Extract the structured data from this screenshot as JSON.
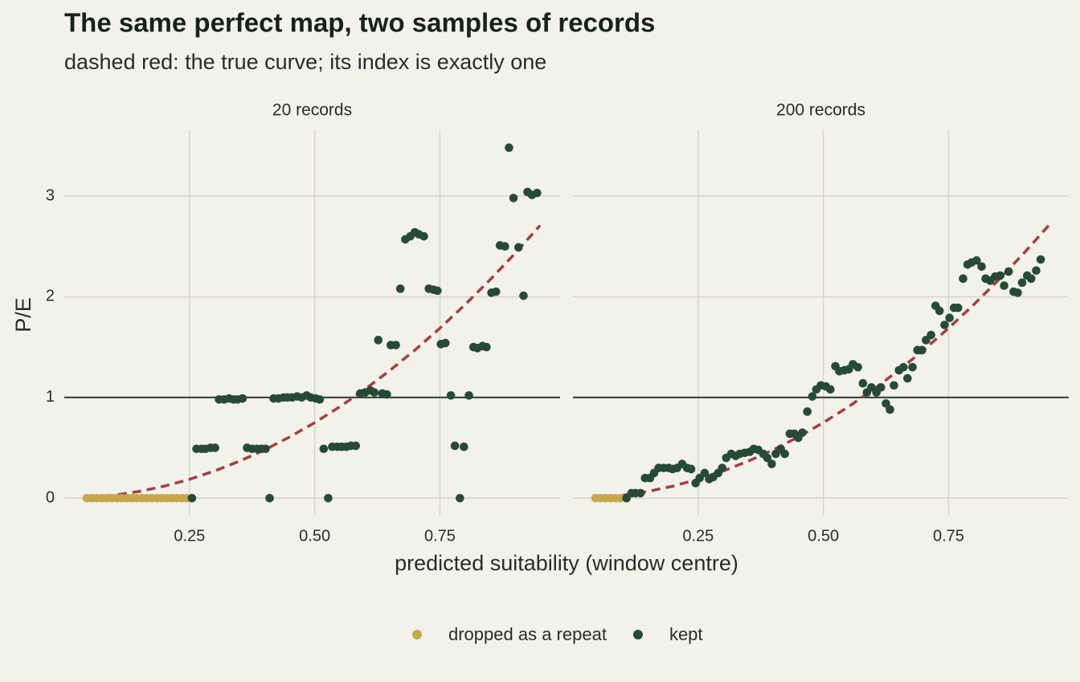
{
  "title": "The same perfect map, two samples of records",
  "subtitle": "dashed red: the true curve; its index is exactly one",
  "x_label": "predicted suitability (window centre)",
  "y_label": "P/E",
  "legend_position": "bottom",
  "chart_data": [
    {
      "type": "scatter",
      "panel_title": "20 records",
      "xlim": [
        0,
        0.99
      ],
      "ylim": [
        -0.174,
        3.654
      ],
      "xticks": [
        0.25,
        {
          "value": 0.5,
          "label": "0.50"
        },
        0.75
      ],
      "yticks": [
        0,
        1,
        2,
        3
      ],
      "grid": true,
      "hline": 1,
      "hline_color": "#2a3a30",
      "curve": {
        "color": "#a33f3f",
        "x": [
          0.05,
          0.1,
          0.15,
          0.2,
          0.25,
          0.3,
          0.35,
          0.4,
          0.45,
          0.5,
          0.55,
          0.6,
          0.65,
          0.7,
          0.75,
          0.8,
          0.85,
          0.9,
          0.95
        ],
        "values": [
          0.0075,
          0.03,
          0.0675,
          0.12,
          0.1875,
          0.27,
          0.3675,
          0.48,
          0.6075,
          0.75,
          0.9075,
          1.08,
          1.2675,
          1.47,
          1.6875,
          1.92,
          2.1675,
          2.43,
          2.7075
        ]
      },
      "series": [
        {
          "name": "dropped as a repeat",
          "color": "#c4a84a",
          "x": [
            0.045,
            0.055,
            0.065,
            0.075,
            0.085,
            0.095,
            0.105,
            0.115,
            0.125,
            0.135,
            0.145,
            0.155,
            0.165,
            0.175,
            0.185,
            0.195,
            0.205,
            0.215,
            0.225,
            0.235,
            0.245
          ],
          "values": [
            0,
            0,
            0,
            0,
            0,
            0,
            0,
            0,
            0,
            0,
            0,
            0,
            0,
            0,
            0,
            0,
            0,
            0,
            0,
            0,
            0
          ]
        },
        {
          "name": "kept",
          "color": "#264a36",
          "x": [
            0.255,
            0.264,
            0.274,
            0.282,
            0.292,
            0.301,
            0.309,
            0.319,
            0.329,
            0.338,
            0.346,
            0.356,
            0.365,
            0.375,
            0.385,
            0.394,
            0.402,
            0.41,
            0.418,
            0.428,
            0.438,
            0.446,
            0.455,
            0.465,
            0.474,
            0.484,
            0.492,
            0.502,
            0.51,
            0.518,
            0.527,
            0.535,
            0.545,
            0.554,
            0.563,
            0.572,
            0.582,
            0.591,
            0.601,
            0.611,
            0.619,
            0.627,
            0.635,
            0.644,
            0.652,
            0.662,
            0.671,
            0.681,
            0.691,
            0.7,
            0.708,
            0.718,
            0.728,
            0.737,
            0.745,
            0.752,
            0.761,
            0.772,
            0.78,
            0.79,
            0.798,
            0.808,
            0.817,
            0.825,
            0.835,
            0.843,
            0.853,
            0.862,
            0.87,
            0.88,
            0.888,
            0.897,
            0.907,
            0.917,
            0.925,
            0.934,
            0.944
          ],
          "values": [
            0,
            0.49,
            0.49,
            0.49,
            0.5,
            0.5,
            0.98,
            0.98,
            0.99,
            0.98,
            0.98,
            0.99,
            0.5,
            0.49,
            0.49,
            0.49,
            0.49,
            0,
            0.99,
            0.99,
            1.0,
            1.0,
            1.0,
            1.01,
            1.0,
            1.02,
            1.0,
            0.99,
            0.98,
            0.49,
            0,
            0.51,
            0.51,
            0.51,
            0.51,
            0.52,
            0.52,
            1.04,
            1.05,
            1.07,
            1.05,
            1.57,
            1.04,
            1.03,
            1.52,
            1.52,
            2.08,
            2.57,
            2.6,
            2.64,
            2.62,
            2.6,
            2.08,
            2.07,
            2.06,
            1.53,
            1.54,
            1.02,
            0.52,
            0,
            0.51,
            1.02,
            1.5,
            1.49,
            1.51,
            1.5,
            2.04,
            2.05,
            2.51,
            2.5,
            3.48,
            2.98,
            2.49,
            2.01,
            3.04,
            3.01,
            3.03
          ]
        }
      ]
    },
    {
      "type": "scatter",
      "panel_title": "200 records",
      "xlim": [
        0,
        0.99
      ],
      "ylim": [
        -0.174,
        3.654
      ],
      "xticks": [
        0.25,
        {
          "value": 0.5,
          "label": "0.50"
        },
        0.75
      ],
      "yticks": [
        0,
        1,
        2,
        3
      ],
      "grid": true,
      "hline": 1,
      "hline_color": "#2a3a30",
      "curve": {
        "color": "#a33f3f",
        "x": [
          0.1,
          0.15,
          0.2,
          0.25,
          0.3,
          0.35,
          0.4,
          0.45,
          0.5,
          0.55,
          0.6,
          0.65,
          0.7,
          0.75,
          0.8,
          0.85,
          0.9,
          0.95
        ],
        "values": [
          0.03,
          0.0675,
          0.12,
          0.1875,
          0.27,
          0.3675,
          0.48,
          0.6075,
          0.75,
          0.9075,
          1.08,
          1.2675,
          1.47,
          1.6875,
          1.92,
          2.1675,
          2.43,
          2.7075
        ]
      },
      "series": [
        {
          "color": "#c4a84a",
          "x": [
            0.045,
            0.055,
            0.065,
            0.075,
            0.085,
            0.095
          ],
          "values": [
            0,
            0,
            0,
            0,
            0,
            0
          ]
        },
        {
          "color": "#264a36",
          "x": [
            0.107,
            0.117,
            0.125,
            0.135,
            0.144,
            0.154,
            0.162,
            0.171,
            0.181,
            0.191,
            0.199,
            0.208,
            0.218,
            0.228,
            0.236,
            0.245,
            0.253,
            0.263,
            0.272,
            0.28,
            0.29,
            0.298,
            0.306,
            0.316,
            0.325,
            0.333,
            0.343,
            0.353,
            0.361,
            0.37,
            0.38,
            0.388,
            0.397,
            0.405,
            0.415,
            0.423,
            0.433,
            0.442,
            0.45,
            0.458,
            0.468,
            0.478,
            0.486,
            0.495,
            0.505,
            0.514,
            0.524,
            0.532,
            0.542,
            0.551,
            0.559,
            0.569,
            0.579,
            0.587,
            0.596,
            0.606,
            0.615,
            0.625,
            0.633,
            0.641,
            0.651,
            0.66,
            0.668,
            0.678,
            0.688,
            0.697,
            0.705,
            0.715,
            0.724,
            0.732,
            0.742,
            0.752,
            0.761,
            0.769,
            0.779,
            0.788,
            0.796,
            0.806,
            0.816,
            0.824,
            0.833,
            0.843,
            0.853,
            0.861,
            0.87,
            0.88,
            0.888,
            0.897,
            0.907,
            0.915,
            0.925,
            0.934
          ],
          "values": [
            0,
            0.05,
            0.05,
            0.05,
            0.2,
            0.2,
            0.25,
            0.3,
            0.3,
            0.3,
            0.29,
            0.3,
            0.34,
            0.3,
            0.29,
            0.15,
            0.2,
            0.25,
            0.19,
            0.21,
            0.25,
            0.3,
            0.4,
            0.44,
            0.42,
            0.44,
            0.45,
            0.46,
            0.49,
            0.48,
            0.44,
            0.4,
            0.34,
            0.44,
            0.49,
            0.44,
            0.64,
            0.64,
            0.6,
            0.65,
            0.86,
            1.01,
            1.08,
            1.12,
            1.11,
            1.08,
            1.31,
            1.26,
            1.27,
            1.28,
            1.33,
            1.3,
            1.14,
            1.05,
            1.1,
            1.05,
            1.1,
            0.94,
            0.88,
            1.12,
            1.27,
            1.3,
            1.19,
            1.3,
            1.47,
            1.47,
            1.57,
            1.62,
            1.91,
            1.86,
            1.72,
            1.79,
            1.89,
            1.89,
            2.18,
            2.32,
            2.34,
            2.36,
            2.3,
            2.18,
            2.16,
            2.2,
            2.21,
            2.11,
            2.25,
            2.05,
            2.04,
            2.14,
            2.21,
            2.18,
            2.26,
            2.37
          ]
        }
      ]
    }
  ]
}
